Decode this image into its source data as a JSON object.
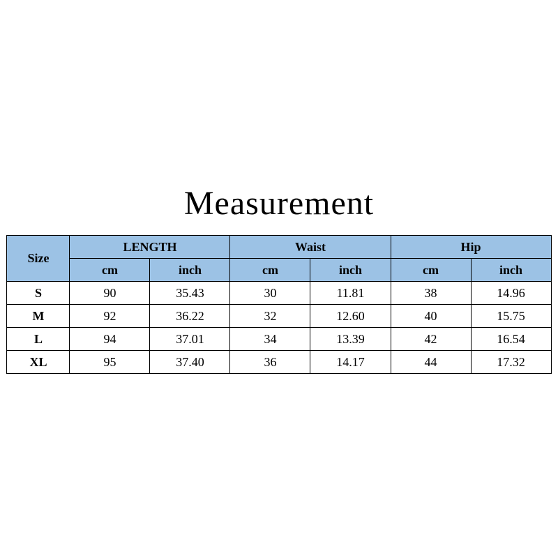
{
  "title": "Measurement",
  "header_bg": "#9cc2e5",
  "border_color": "#000000",
  "title_fontsize": 48,
  "cell_fontsize": 18,
  "groups": [
    {
      "label": "LENGTH",
      "units": [
        "cm",
        "inch"
      ]
    },
    {
      "label": "Waist",
      "units": [
        "cm",
        "inch"
      ]
    },
    {
      "label": "Hip",
      "units": [
        "cm",
        "inch"
      ]
    }
  ],
  "size_label": "Size",
  "rows": [
    {
      "size": "S",
      "values": [
        "90",
        "35.43",
        "30",
        "11.81",
        "38",
        "14.96"
      ]
    },
    {
      "size": "M",
      "values": [
        "92",
        "36.22",
        "32",
        "12.60",
        "40",
        "15.75"
      ]
    },
    {
      "size": "L",
      "values": [
        "94",
        "37.01",
        "34",
        "13.39",
        "42",
        "16.54"
      ]
    },
    {
      "size": "XL",
      "values": [
        "95",
        "37.40",
        "36",
        "14.17",
        "44",
        "17.32"
      ]
    }
  ]
}
